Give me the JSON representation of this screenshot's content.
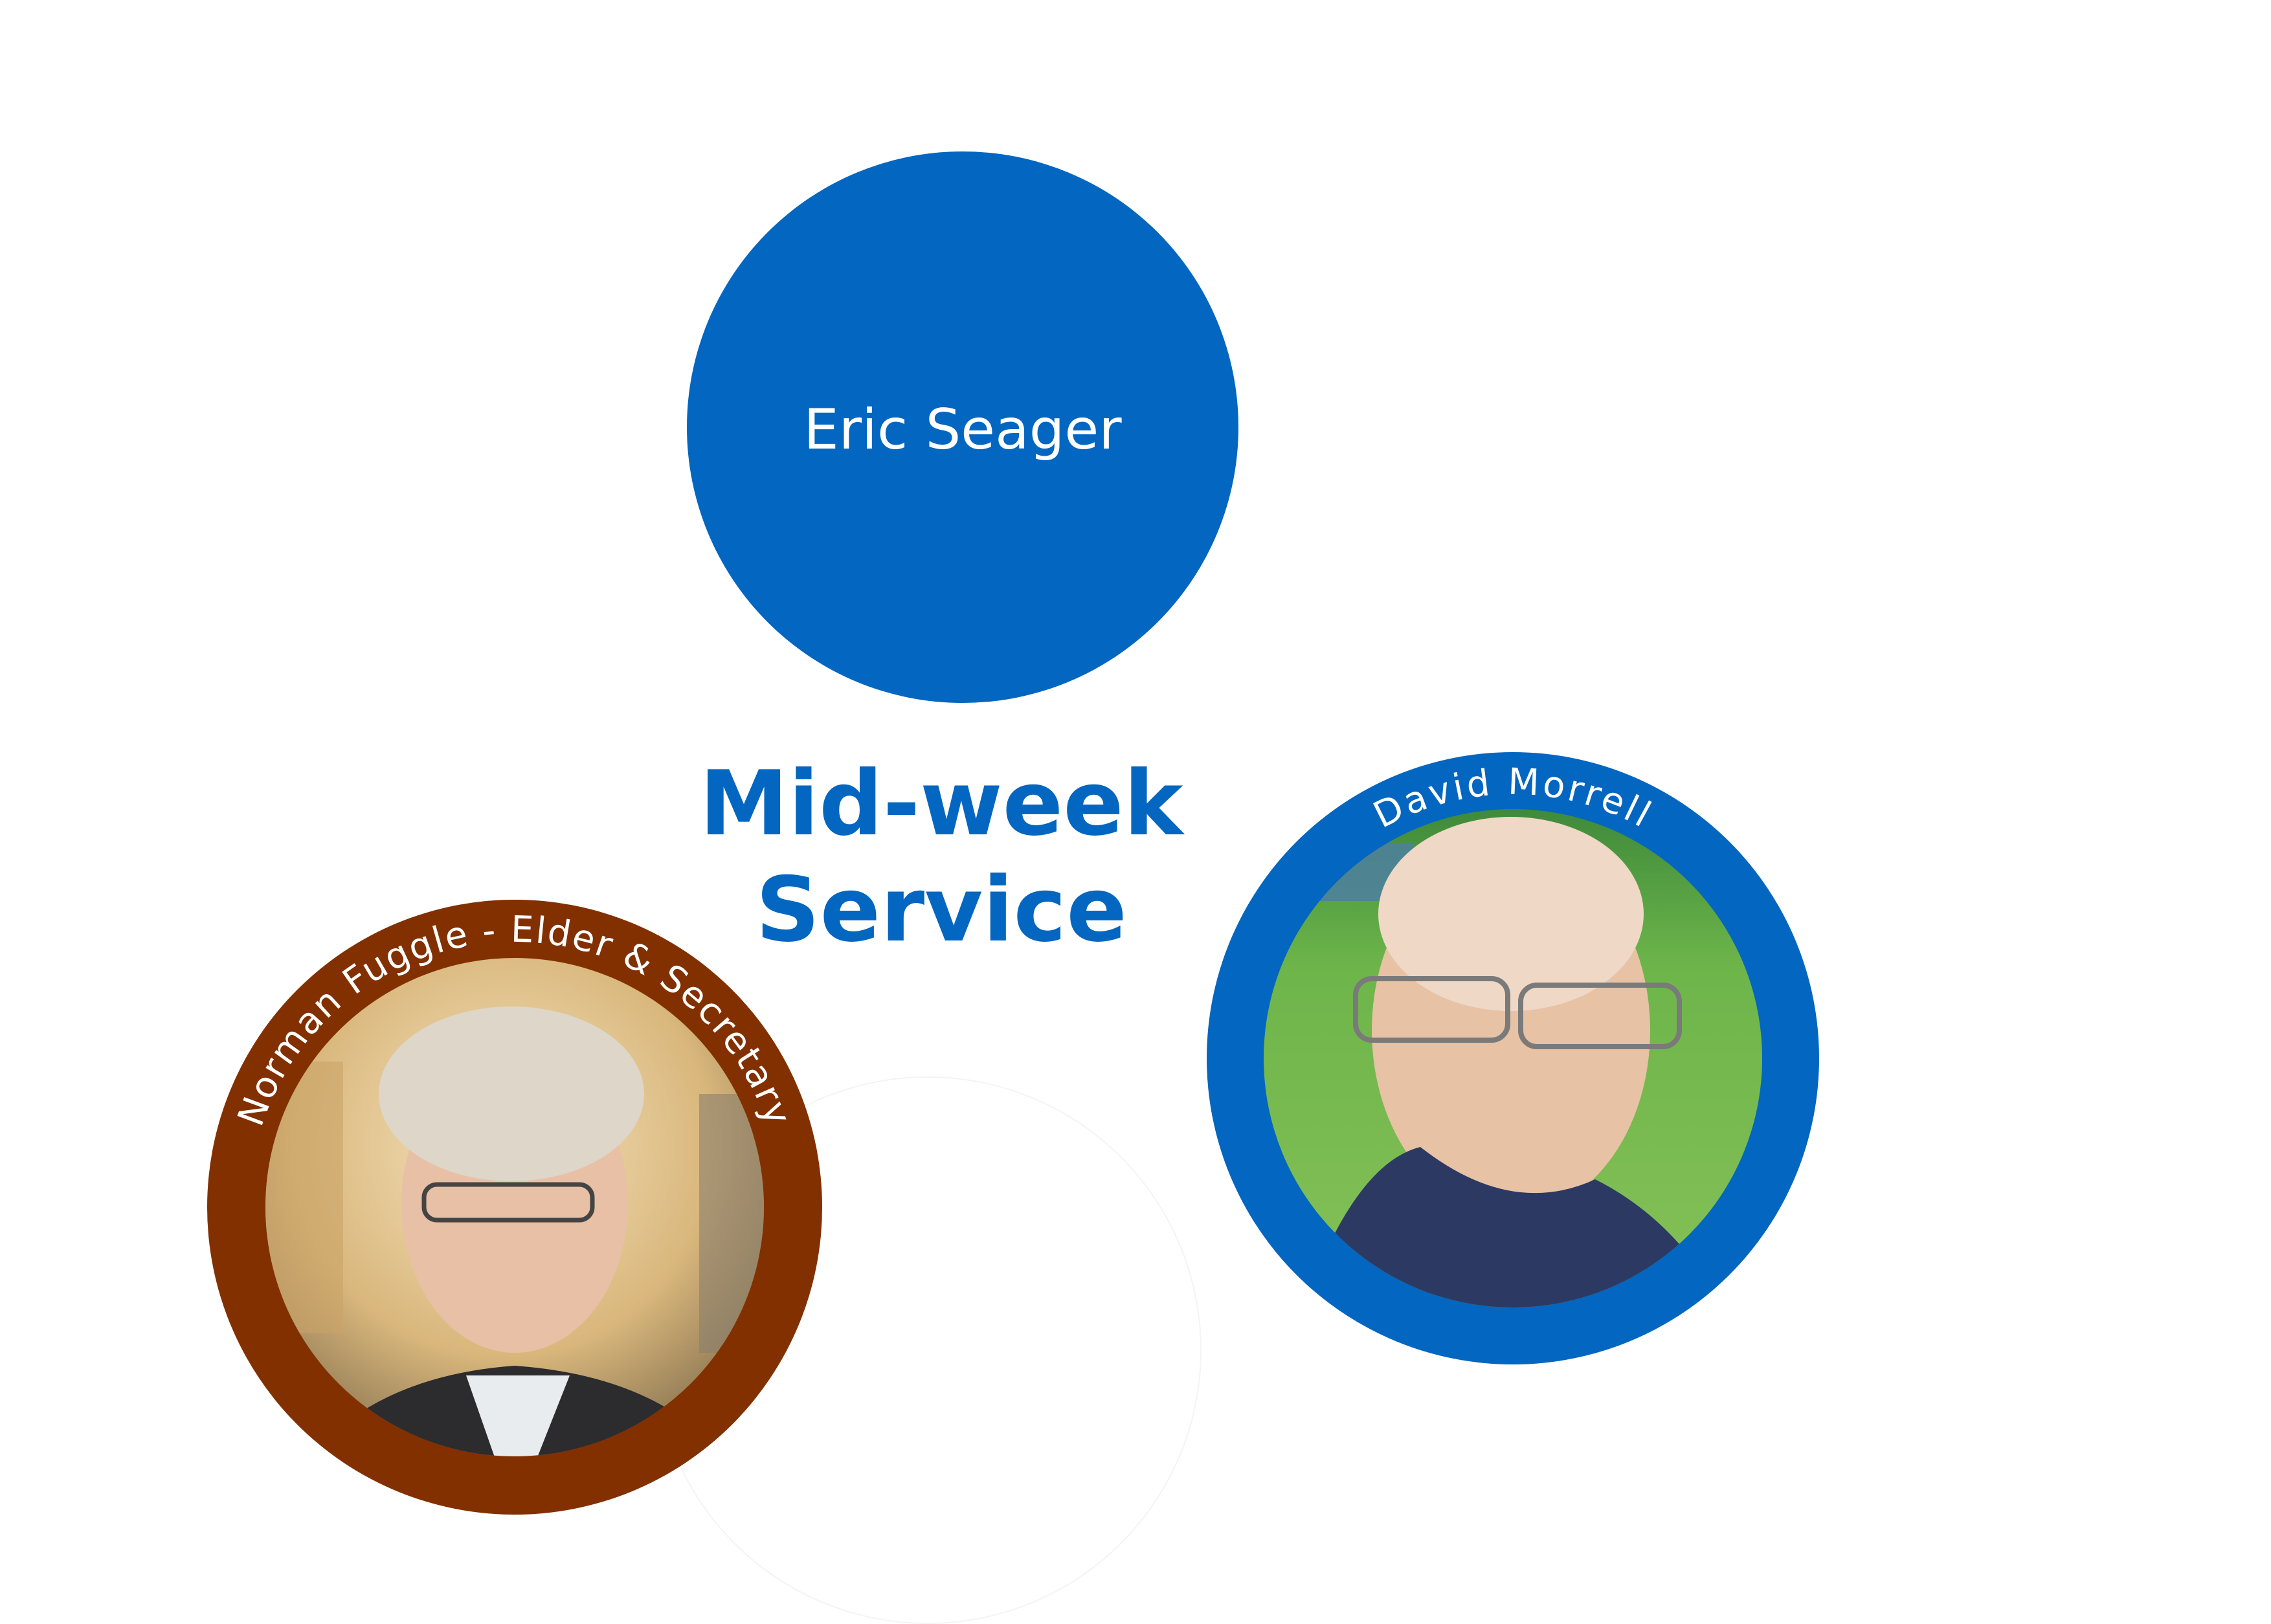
{
  "colors": {
    "blue": "#0366c1",
    "brown": "#823000",
    "white": "#ffffff"
  },
  "top_circle": {
    "name": "Eric Seager"
  },
  "title": {
    "line1": "Mid-week",
    "line2": "Service"
  },
  "badges": [
    {
      "caption": "Norman Fuggle - Elder & Secretary",
      "ring_color": "brown",
      "photo": "portrait-photo"
    },
    {
      "caption": "David Morrell",
      "ring_color": "blue",
      "photo": "portrait-photo-outdoors"
    }
  ]
}
